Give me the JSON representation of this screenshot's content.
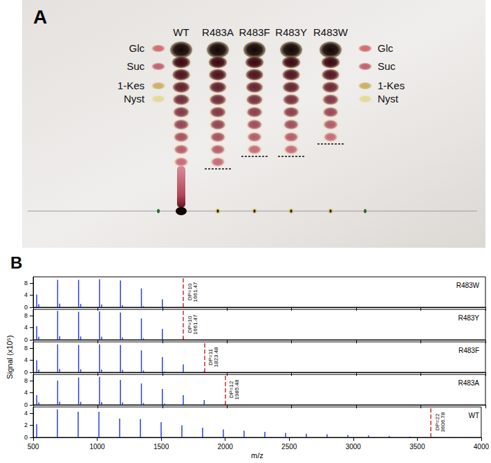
{
  "panel_a": {
    "label": "A",
    "standards": [
      "Glc",
      "Suc",
      "1-Kes",
      "Nyst"
    ],
    "lanes": [
      {
        "name": "WT",
        "spots": 10,
        "smear": true
      },
      {
        "name": "R483A",
        "spots": 10
      },
      {
        "name": "R483F",
        "spots": 9
      },
      {
        "name": "R483Y",
        "spots": 9
      },
      {
        "name": "R483W",
        "spots": 8
      }
    ]
  },
  "chart_data": {
    "type": "bar",
    "label": "B",
    "xlabel": "m/z",
    "ylabel": "Signal (x10⁵)",
    "xlim": [
      500,
      4000
    ],
    "xticks": [
      500,
      1000,
      1500,
      2000,
      2500,
      3000,
      3500,
      4000
    ],
    "color": "#2b3fe0",
    "panels": [
      {
        "title": "R483W",
        "ylim": [
          0,
          10
        ],
        "yticks": [
          0,
          4,
          8
        ],
        "x": [
          527.16,
          543.13,
          689.21,
          705.19,
          851.26,
          867.24,
          1013.32,
          1029.29,
          1175.37,
          1191.35,
          1337.42,
          1353.4,
          1499.48,
          1661.47
        ],
        "values": [
          4.2,
          1.0,
          9.0,
          1.2,
          9.0,
          1.1,
          9.2,
          0.9,
          8.8,
          0.7,
          6.2,
          0.4,
          2.6,
          0.3
        ],
        "annotation": {
          "x": 1661.47,
          "text": "DP=10",
          "color": "#d62728",
          "line_style": "dashed"
        }
      },
      {
        "title": "R483Y",
        "ylim": [
          0,
          10
        ],
        "yticks": [
          0,
          4,
          8
        ],
        "x": [
          527.16,
          543.13,
          689.21,
          705.19,
          851.26,
          867.24,
          1013.32,
          1029.29,
          1175.37,
          1191.35,
          1337.42,
          1353.4,
          1499.48,
          1661.47
        ],
        "values": [
          4.5,
          1.0,
          9.5,
          1.2,
          9.2,
          1.1,
          9.3,
          1.0,
          9.0,
          0.8,
          7.0,
          0.5,
          3.6,
          0.6
        ],
        "annotation": {
          "x": 1661.47,
          "text": "DP=10",
          "color": "#d62728",
          "line_style": "dashed"
        }
      },
      {
        "title": "R483F",
        "ylim": [
          0,
          10
        ],
        "yticks": [
          0,
          4,
          8
        ],
        "x": [
          527.16,
          543.13,
          689.21,
          705.19,
          851.26,
          867.24,
          1013.32,
          1029.29,
          1175.37,
          1191.35,
          1337.42,
          1353.4,
          1499.48,
          1515.45,
          1661.47,
          1823.48
        ],
        "values": [
          4.0,
          0.9,
          9.2,
          1.1,
          9.0,
          1.0,
          9.2,
          0.9,
          9.0,
          0.8,
          7.2,
          0.6,
          5.0,
          0.3,
          2.6,
          0.5
        ],
        "annotation": {
          "x": 1823.48,
          "text": "DP=11",
          "color": "#d62728",
          "line_style": "dashed"
        }
      },
      {
        "title": "R483A",
        "ylim": [
          0,
          10
        ],
        "yticks": [
          0,
          4,
          8
        ],
        "x": [
          527.16,
          543.13,
          689.21,
          705.19,
          851.26,
          867.24,
          1013.32,
          1029.29,
          1175.37,
          1191.35,
          1337.42,
          1353.4,
          1499.48,
          1515.45,
          1661.47,
          1823.48,
          1985.48
        ],
        "values": [
          3.2,
          0.8,
          8.0,
          1.0,
          9.0,
          1.0,
          9.2,
          0.9,
          8.2,
          0.8,
          7.0,
          0.6,
          5.2,
          0.4,
          3.2,
          1.6,
          0.4
        ],
        "annotation": {
          "x": 1985.48,
          "text": "DP=12",
          "color": "#d62728",
          "line_style": "dashed"
        }
      },
      {
        "title": "WT",
        "ylim": [
          0,
          5
        ],
        "yticks": [
          0,
          2,
          4
        ],
        "x": [
          527.16,
          689.21,
          851.26,
          1013.32,
          1175.37,
          1337.42,
          1499.48,
          1661.47,
          1823.48,
          1985.48,
          2147.5,
          2309.6,
          2471.6,
          2633.7,
          2795.7,
          2957.8,
          3119.8,
          3281.9,
          3443.9,
          3606.78
        ],
        "values": [
          2.2,
          4.6,
          4.2,
          4.2,
          3.1,
          3.0,
          2.5,
          2.0,
          1.6,
          1.3,
          1.1,
          0.9,
          0.75,
          0.6,
          0.5,
          0.4,
          0.3,
          0.22,
          0.15,
          0.08
        ],
        "annotation": {
          "x": 3606.78,
          "text": "DP=22",
          "color": "#d62728",
          "line_style": "dashed"
        }
      }
    ]
  }
}
